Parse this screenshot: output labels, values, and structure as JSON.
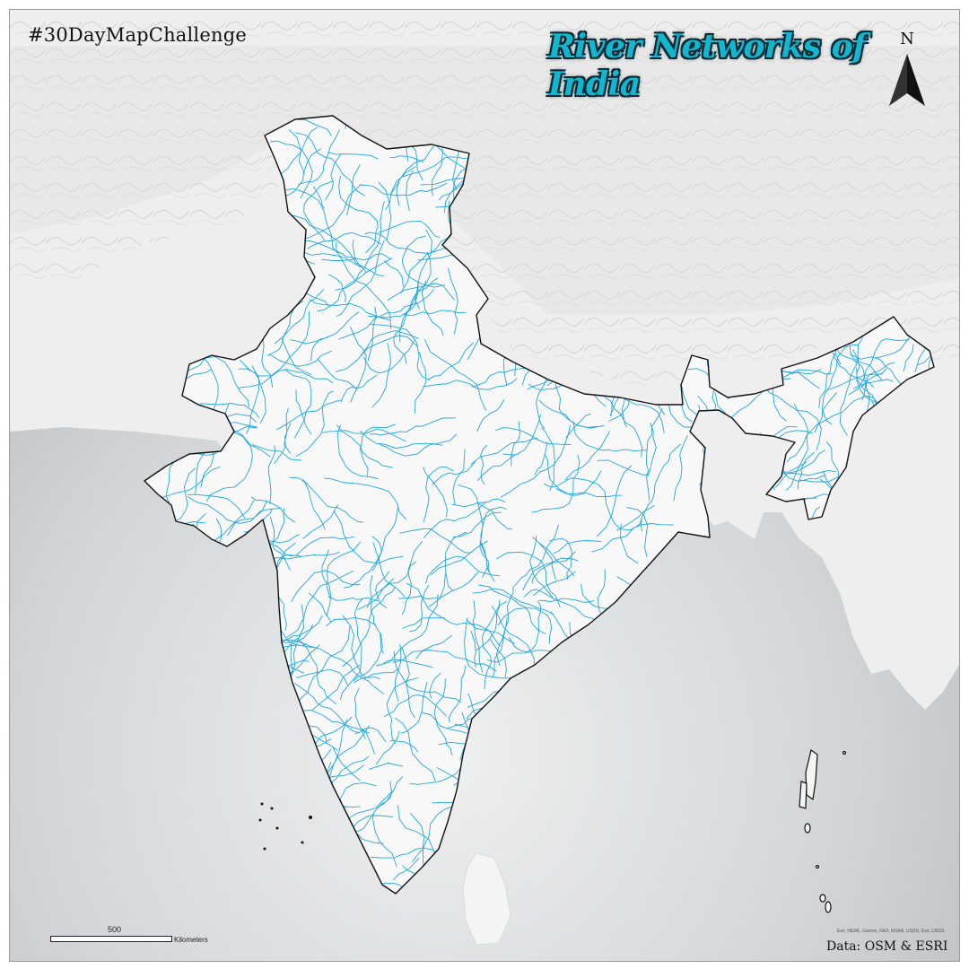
{
  "hashtag": "#30DayMapChallenge",
  "title": "River Networks of India",
  "north_label": "N",
  "scale": {
    "value": "500",
    "unit": "Kilometers"
  },
  "credits": "Esri, HERE, Garmin, FAO, NOAA, USGS, Esri, USGS",
  "data_source": "Data: OSM & ESRI",
  "colors": {
    "river": "#1ea7dc",
    "title_fill": "#12b6cf",
    "title_outline": "#0b2b36",
    "border": "#111111",
    "sea": "#c9cdd0",
    "land": "#ececec"
  }
}
